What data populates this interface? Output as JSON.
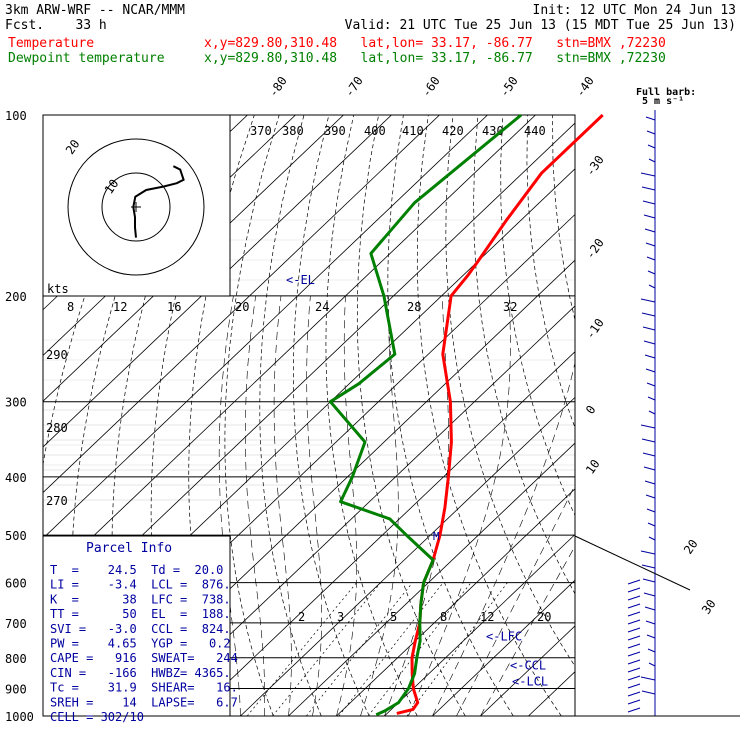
{
  "header": {
    "model": "3km ARW-WRF -- NCAR/MMM",
    "fcst": "Fcst.    33 h",
    "init": "Init: 12 UTC Mon 24 Jun 13",
    "valid": "Valid: 21 UTC Tue 25 Jun 13 (15 MDT Tue 25 Jun 13)",
    "temp_label": "Temperature",
    "dew_label": "Dewpoint temperature",
    "loc_text": "x,y=829.80,310.48   lat,lon= 33.17, -86.77   stn=BMX ,72230",
    "temp_color": "#ff0000",
    "dew_color": "#008000"
  },
  "chart_data": {
    "type": "line",
    "pressure_levels": [
      100,
      200,
      300,
      400,
      500,
      600,
      700,
      800,
      900,
      1000
    ],
    "temp_scale_labels": [
      "-80",
      "-70",
      "-60",
      "-50",
      "-40",
      "-30",
      "-20",
      "-10",
      "0",
      "10",
      "20",
      "30",
      "40"
    ],
    "theta_labels": [
      "370",
      "380",
      "390",
      "400",
      "410",
      "420",
      "430",
      "440"
    ],
    "mixing_ratio_labels": [
      "2",
      "3",
      "5",
      "8",
      "12",
      "20"
    ],
    "dry_adiabat_side_labels": [
      "290",
      "280",
      "270"
    ],
    "hodograph": {
      "unit": "kts",
      "ring_labels": [
        "10",
        "20"
      ],
      "speed_scale": [
        "8",
        "12",
        "16",
        "20",
        "24",
        "28",
        "32"
      ],
      "path": [
        [
          0,
          -9
        ],
        [
          -0.3,
          -6
        ],
        [
          -0.3,
          -3
        ],
        [
          -0.8,
          0
        ],
        [
          -0.2,
          3
        ],
        [
          3,
          5
        ],
        [
          8,
          6
        ],
        [
          12,
          7
        ],
        [
          14,
          8
        ],
        [
          13,
          11
        ],
        [
          11,
          12
        ]
      ]
    },
    "temperature": [
      {
        "p": 100,
        "t": -66
      },
      {
        "p": 125,
        "t": -66
      },
      {
        "p": 150,
        "t": -63
      },
      {
        "p": 175,
        "t": -60
      },
      {
        "p": 185,
        "t": -59
      },
      {
        "p": 200,
        "t": -58
      },
      {
        "p": 250,
        "t": -47
      },
      {
        "p": 300,
        "t": -35
      },
      {
        "p": 350,
        "t": -26
      },
      {
        "p": 400,
        "t": -19
      },
      {
        "p": 450,
        "t": -13
      },
      {
        "p": 500,
        "t": -8
      },
      {
        "p": 550,
        "t": -4
      },
      {
        "p": 600,
        "t": -1
      },
      {
        "p": 650,
        "t": 3
      },
      {
        "p": 700,
        "t": 7
      },
      {
        "p": 750,
        "t": 10
      },
      {
        "p": 800,
        "t": 13
      },
      {
        "p": 850,
        "t": 16.5
      },
      {
        "p": 900,
        "t": 20
      },
      {
        "p": 950,
        "t": 24
      },
      {
        "p": 975,
        "t": 24.5
      },
      {
        "p": 990,
        "t": 22
      }
    ],
    "dewpoint": [
      {
        "p": 100,
        "t": -83
      },
      {
        "p": 140,
        "t": -86
      },
      {
        "p": 170,
        "t": -84
      },
      {
        "p": 200,
        "t": -72
      },
      {
        "p": 250,
        "t": -57
      },
      {
        "p": 280,
        "t": -58
      },
      {
        "p": 300,
        "t": -60
      },
      {
        "p": 350,
        "t": -44
      },
      {
        "p": 400,
        "t": -39
      },
      {
        "p": 440,
        "t": -36
      },
      {
        "p": 470,
        "t": -22
      },
      {
        "p": 500,
        "t": -15
      },
      {
        "p": 550,
        "t": -4
      },
      {
        "p": 600,
        "t": -1
      },
      {
        "p": 650,
        "t": 3
      },
      {
        "p": 700,
        "t": 7
      },
      {
        "p": 750,
        "t": 11
      },
      {
        "p": 800,
        "t": 14
      },
      {
        "p": 850,
        "t": 17
      },
      {
        "p": 900,
        "t": 19
      },
      {
        "p": 950,
        "t": 20
      },
      {
        "p": 980,
        "t": 19
      },
      {
        "p": 995,
        "t": 18
      }
    ],
    "level_markers": [
      {
        "label": "<-EL",
        "p": 188
      },
      {
        "label": "<-LFC",
        "p": 738
      },
      {
        "label": "<-CCL",
        "p": 824
      },
      {
        "label": "<-LCL",
        "p": 876
      }
    ],
    "wind_barbs_header": "Full barb:",
    "wind_barbs_unit": "5 m s⁻¹"
  },
  "parcel": {
    "title": "Parcel Info",
    "rows": [
      "T  =    24.5  Td =  20.0",
      "LI =    -3.4  LCL =  876.",
      "K  =      38  LFC =  738.",
      "TT =      50  EL  =  188.",
      "SVI =   -3.0  CCL =  824.",
      "PW =    4.65  YGP =   0.2",
      "CAPE =   916  SWEAT=   244",
      "CIN =   -166  HWBZ= 4365.",
      "Tc =    31.9  SHEAR=   16.",
      "SREH =    14  LAPSE=   6.7",
      "CELL = 302/10"
    ]
  }
}
